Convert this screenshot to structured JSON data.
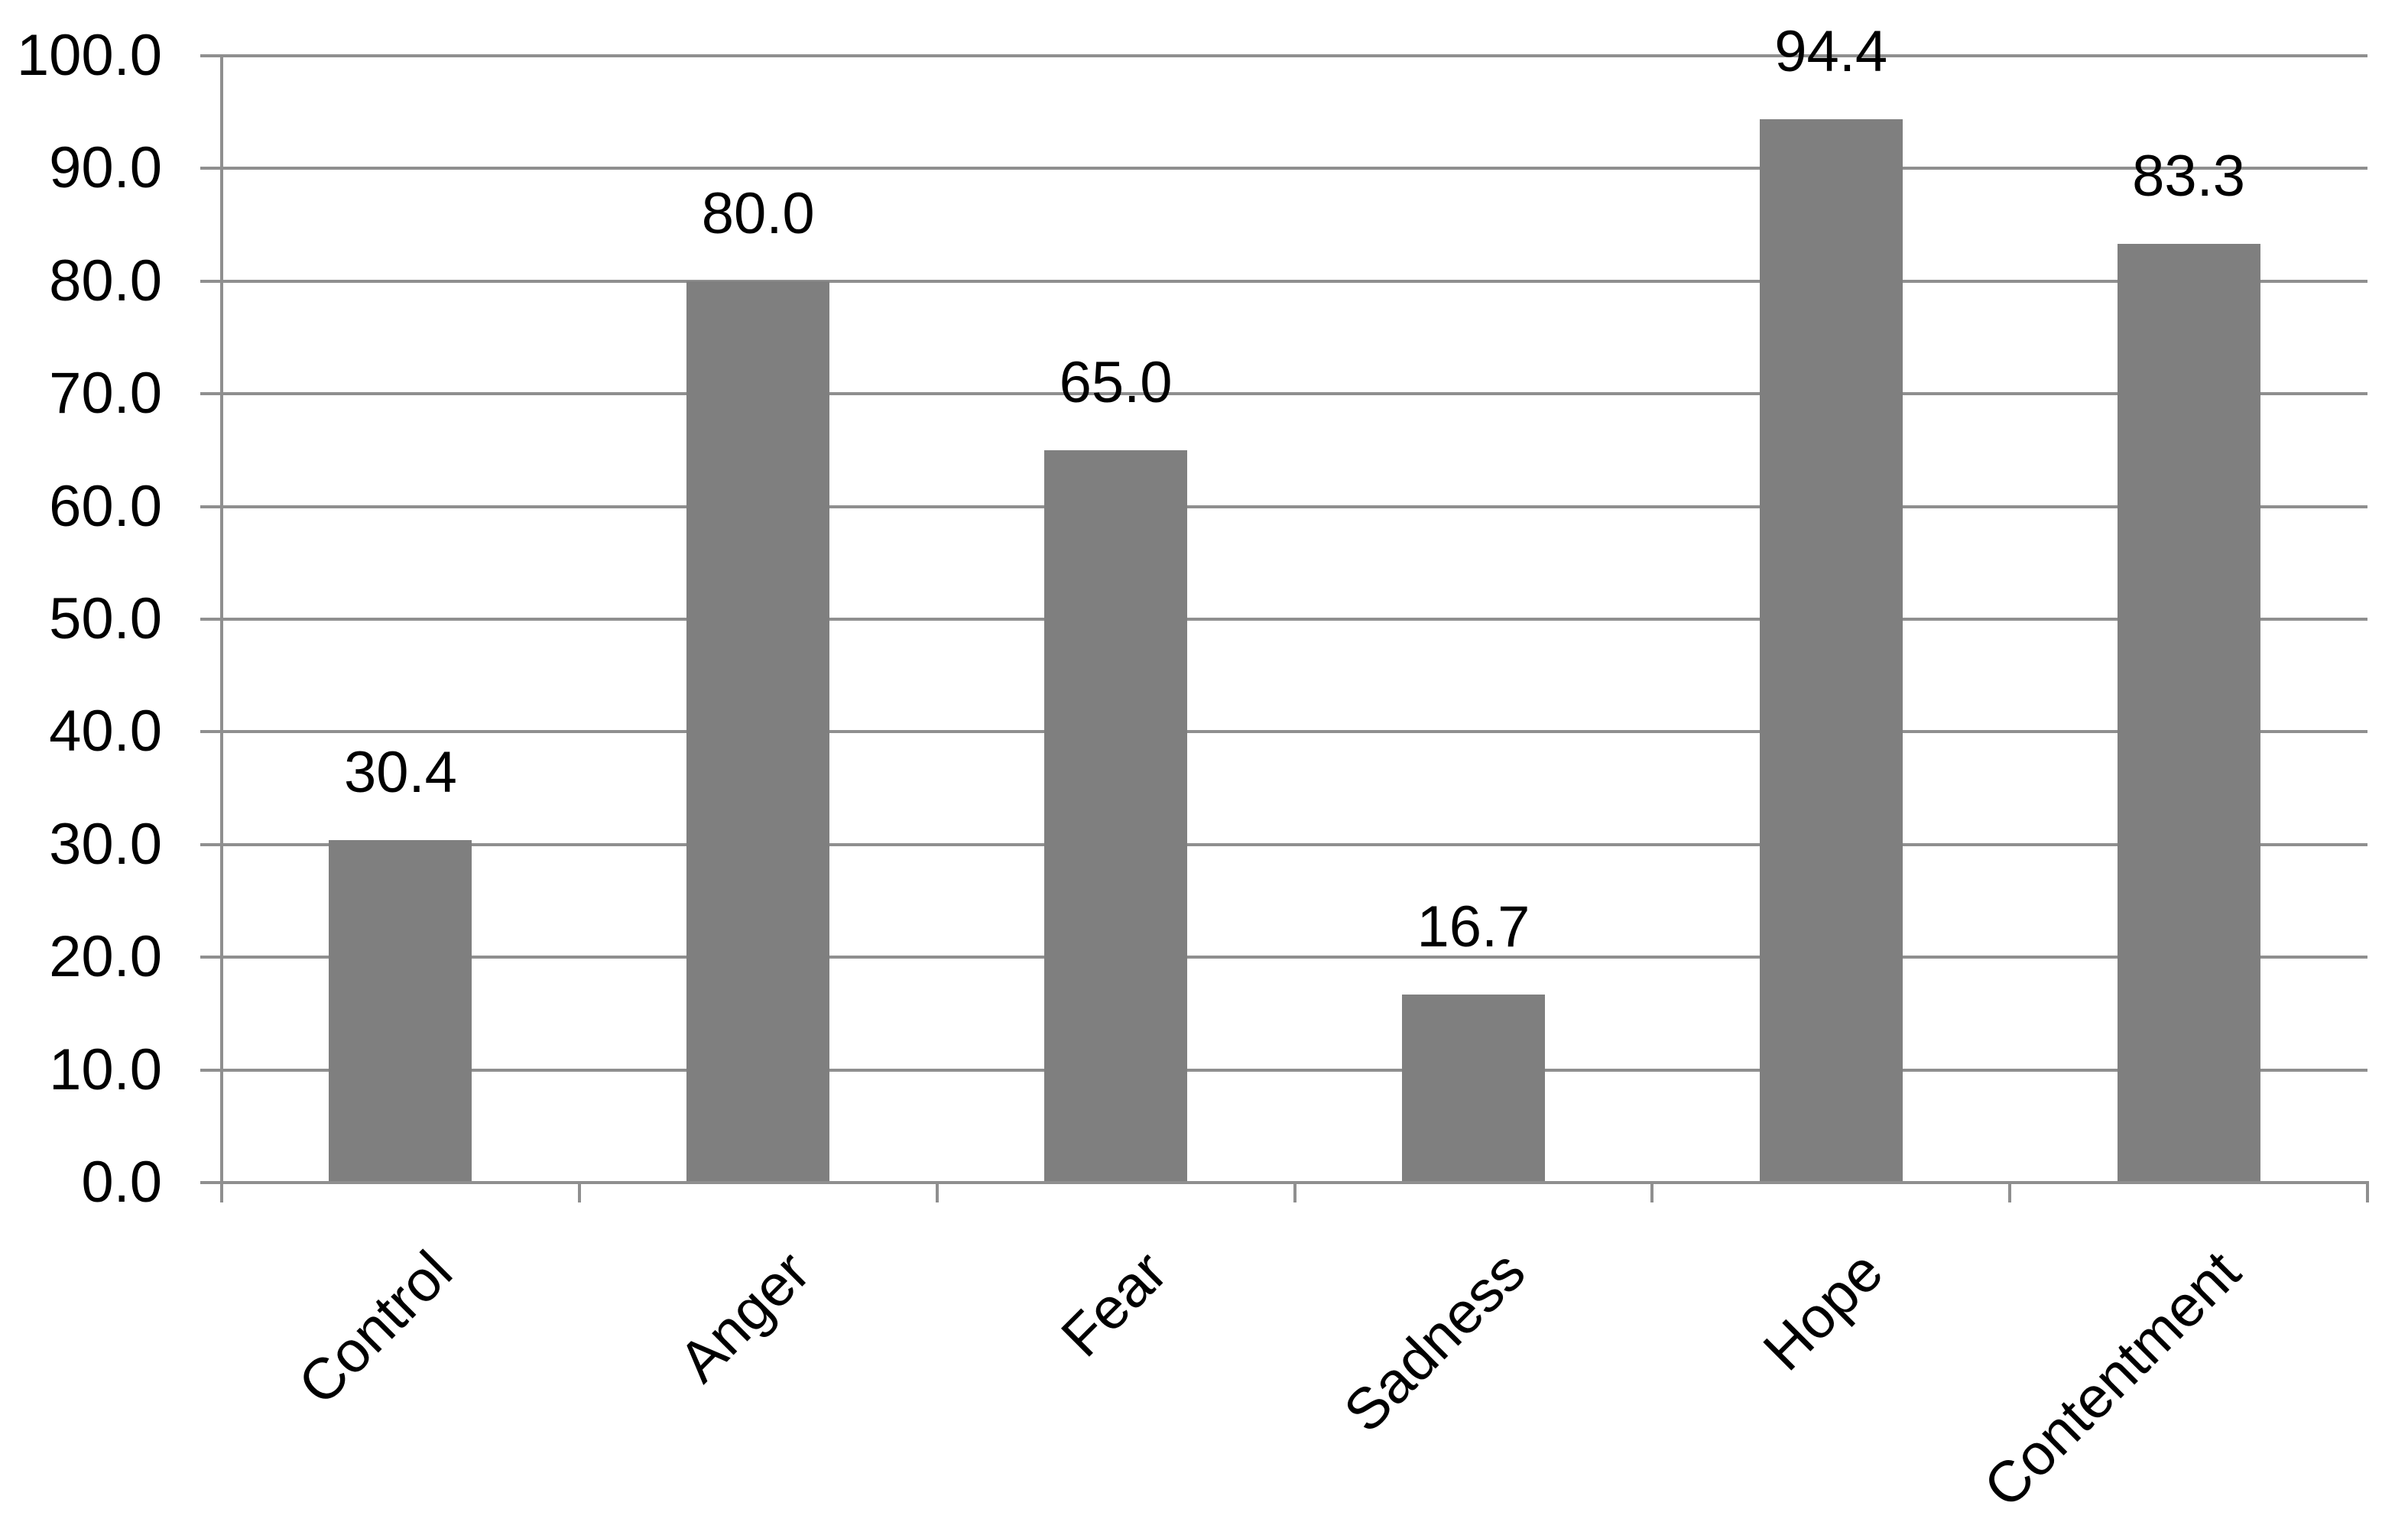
{
  "chart_data": {
    "type": "bar",
    "categories": [
      "Control",
      "Anger",
      "Fear",
      "Sadness",
      "Hope",
      "Contentment"
    ],
    "values": [
      30.4,
      80.0,
      65.0,
      16.7,
      94.4,
      83.3
    ],
    "bar_labels": [
      "30.4",
      "80.0",
      "65.0",
      "16.7",
      "94.4",
      "83.3"
    ],
    "y_tick_labels": [
      "0.0",
      "10.0",
      "20.0",
      "30.0",
      "40.0",
      "50.0",
      "60.0",
      "70.0",
      "80.0",
      "90.0",
      "100.0"
    ],
    "ylim": [
      0,
      100
    ],
    "y_major_step": 10,
    "grid": true,
    "legend_position": "none",
    "colors": {
      "bar": "#7f7f7f",
      "grid_and_axis_lines": "#8f8f8f",
      "label_text": "#000000",
      "background": "#ffffff"
    }
  }
}
